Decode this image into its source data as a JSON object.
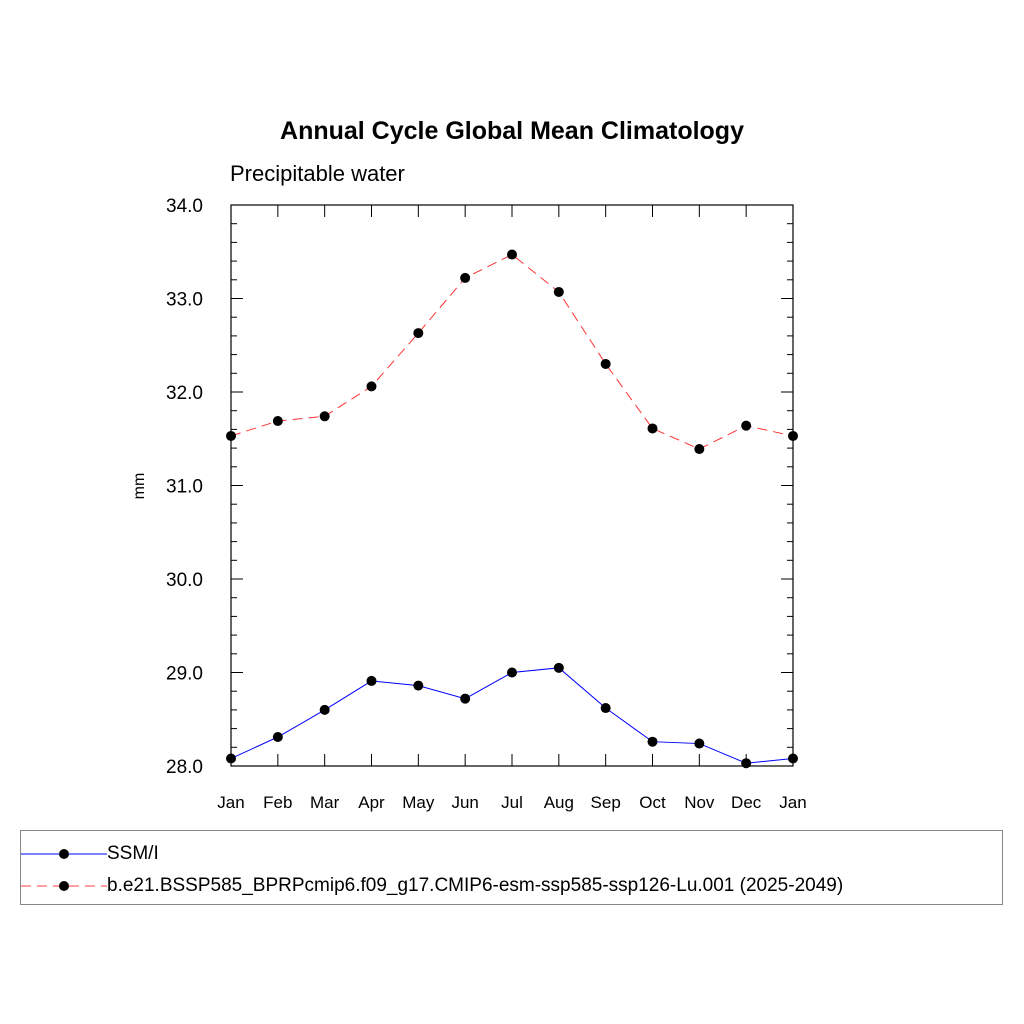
{
  "chart_data": {
    "type": "line",
    "title": "Annual Cycle Global Mean Climatology",
    "subtitle": "Precipitable water",
    "xlabel": "",
    "ylabel": "mm",
    "categories": [
      "Jan",
      "Feb",
      "Mar",
      "Apr",
      "May",
      "Jun",
      "Jul",
      "Aug",
      "Sep",
      "Oct",
      "Nov",
      "Dec",
      "Jan"
    ],
    "ylim": [
      28.0,
      34.0
    ],
    "yticks": [
      "28.0",
      "29.0",
      "30.0",
      "31.0",
      "32.0",
      "33.0",
      "34.0"
    ],
    "grid": false,
    "legend_position": "bottom",
    "series": [
      {
        "name": "SSM/I",
        "color": "#0000ff",
        "dash": "solid",
        "values": [
          28.08,
          28.31,
          28.6,
          28.91,
          28.86,
          28.72,
          29.0,
          29.05,
          28.62,
          28.26,
          28.24,
          28.03,
          28.08
        ]
      },
      {
        "name": "b.e21.BSSP585_BPRPcmip6.f09_g17.CMIP6-esm-ssp585-ssp126-Lu.001 (2025-2049)",
        "color": "#ff0000",
        "dash": "dashed",
        "values": [
          31.53,
          31.69,
          31.74,
          32.06,
          32.63,
          33.22,
          33.47,
          33.07,
          32.3,
          31.61,
          31.39,
          31.64,
          31.53
        ]
      }
    ]
  }
}
